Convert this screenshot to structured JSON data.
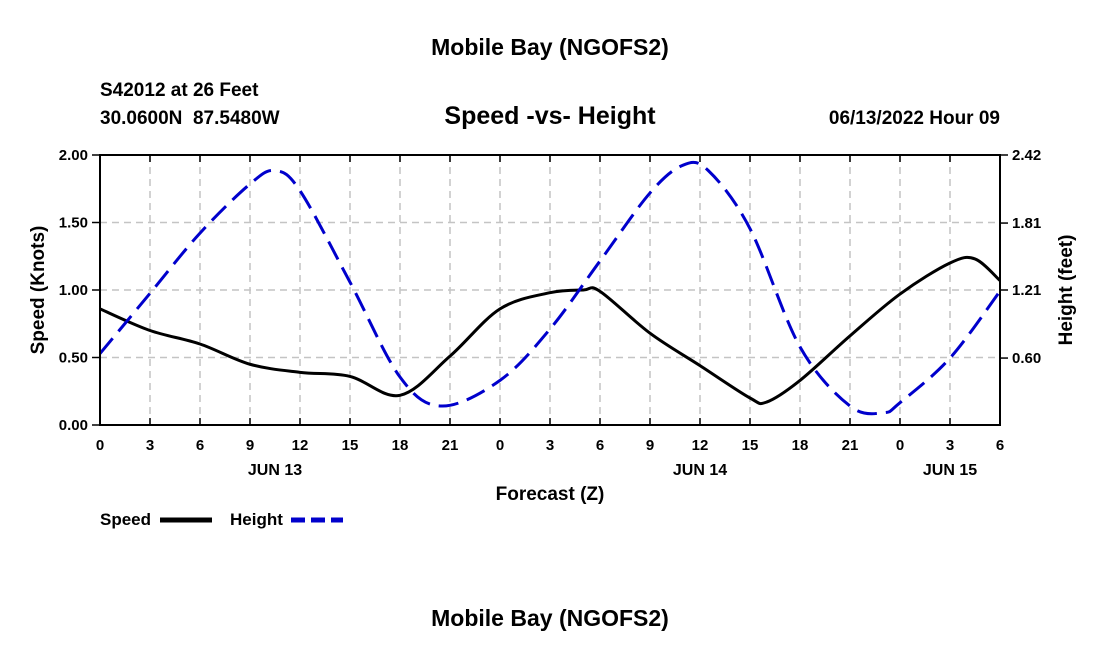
{
  "chart_data": {
    "type": "line",
    "title": "Mobile Bay (NGOFS2)",
    "subtitle": "Speed -vs- Height",
    "station_line1": "S42012 at 26 Feet",
    "station_line2": "30.0600N  87.5480W",
    "timestamp": "06/13/2022 Hour 09",
    "footer_title": "Mobile Bay (NGOFS2)",
    "xlabel": "Forecast (Z)",
    "ylabel_left": "Speed (Knots)",
    "ylabel_right": "Height (feet)",
    "x_range_hours": [
      0,
      54
    ],
    "x_tick_labels": [
      "0",
      "3",
      "6",
      "9",
      "12",
      "15",
      "18",
      "21",
      "0",
      "3",
      "6",
      "9",
      "12",
      "15",
      "18",
      "21",
      "0",
      "3",
      "6"
    ],
    "x_day_labels": [
      {
        "label": "JUN 13",
        "hour": 10.5
      },
      {
        "label": "JUN 14",
        "hour": 36
      },
      {
        "label": "JUN 15",
        "hour": 51
      }
    ],
    "ylim_left": [
      0,
      2.0
    ],
    "y_ticks_left": [
      "0.00",
      "0.50",
      "1.00",
      "1.50",
      "2.00"
    ],
    "ylim_right": [
      0,
      2.42
    ],
    "y_ticks_right": [
      "0.60",
      "1.21",
      "1.81",
      "2.42"
    ],
    "grid": true,
    "legend": [
      {
        "name": "Speed",
        "color": "#000000",
        "style": "solid"
      },
      {
        "name": "Height",
        "color": "#0000cc",
        "style": "dashed"
      }
    ],
    "series": [
      {
        "name": "Speed",
        "axis": "left",
        "color": "#000000",
        "x": [
          0,
          3,
          6,
          9,
          12,
          15,
          18,
          21,
          24,
          27,
          29,
          30,
          33,
          36,
          39,
          40,
          42,
          45,
          48,
          51,
          52.5,
          54
        ],
        "y": [
          0.86,
          0.7,
          0.6,
          0.45,
          0.39,
          0.36,
          0.22,
          0.51,
          0.86,
          0.98,
          1.0,
          0.99,
          0.68,
          0.44,
          0.2,
          0.17,
          0.33,
          0.66,
          0.97,
          1.2,
          1.23,
          1.07
        ]
      },
      {
        "name": "Height",
        "axis": "right",
        "color": "#0000cc",
        "x": [
          0,
          3,
          6,
          9,
          10.5,
          12,
          15,
          18,
          20.5,
          24,
          27,
          30,
          33,
          35,
          36.5,
          39,
          42,
          45,
          47,
          48,
          51,
          54
        ],
        "y": [
          0.64,
          1.18,
          1.72,
          2.16,
          2.28,
          2.1,
          1.28,
          0.43,
          0.17,
          0.4,
          0.86,
          1.47,
          2.08,
          2.33,
          2.28,
          1.76,
          0.7,
          0.17,
          0.11,
          0.2,
          0.6,
          1.2
        ]
      }
    ]
  }
}
